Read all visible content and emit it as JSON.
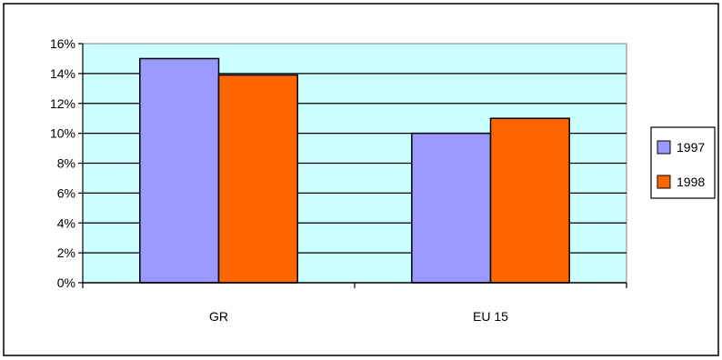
{
  "chart_data": {
    "type": "bar",
    "title": "",
    "xlabel": "",
    "ylabel": "",
    "categories": [
      "GR",
      "EU 15"
    ],
    "series": [
      {
        "name": "1997",
        "values": [
          15,
          10
        ],
        "color": "#9999ff"
      },
      {
        "name": "1998",
        "values": [
          13.9,
          11
        ],
        "color": "#ff6600"
      }
    ],
    "ylim": [
      0,
      16
    ],
    "y_ticks": [
      0,
      2,
      4,
      6,
      8,
      10,
      12,
      14,
      16
    ],
    "y_tick_labels": [
      "0%",
      "2%",
      "4%",
      "6%",
      "8%",
      "10%",
      "12%",
      "14%",
      "16%"
    ],
    "grid": true,
    "plot_background": "#ccffff",
    "legend_position": "right"
  }
}
